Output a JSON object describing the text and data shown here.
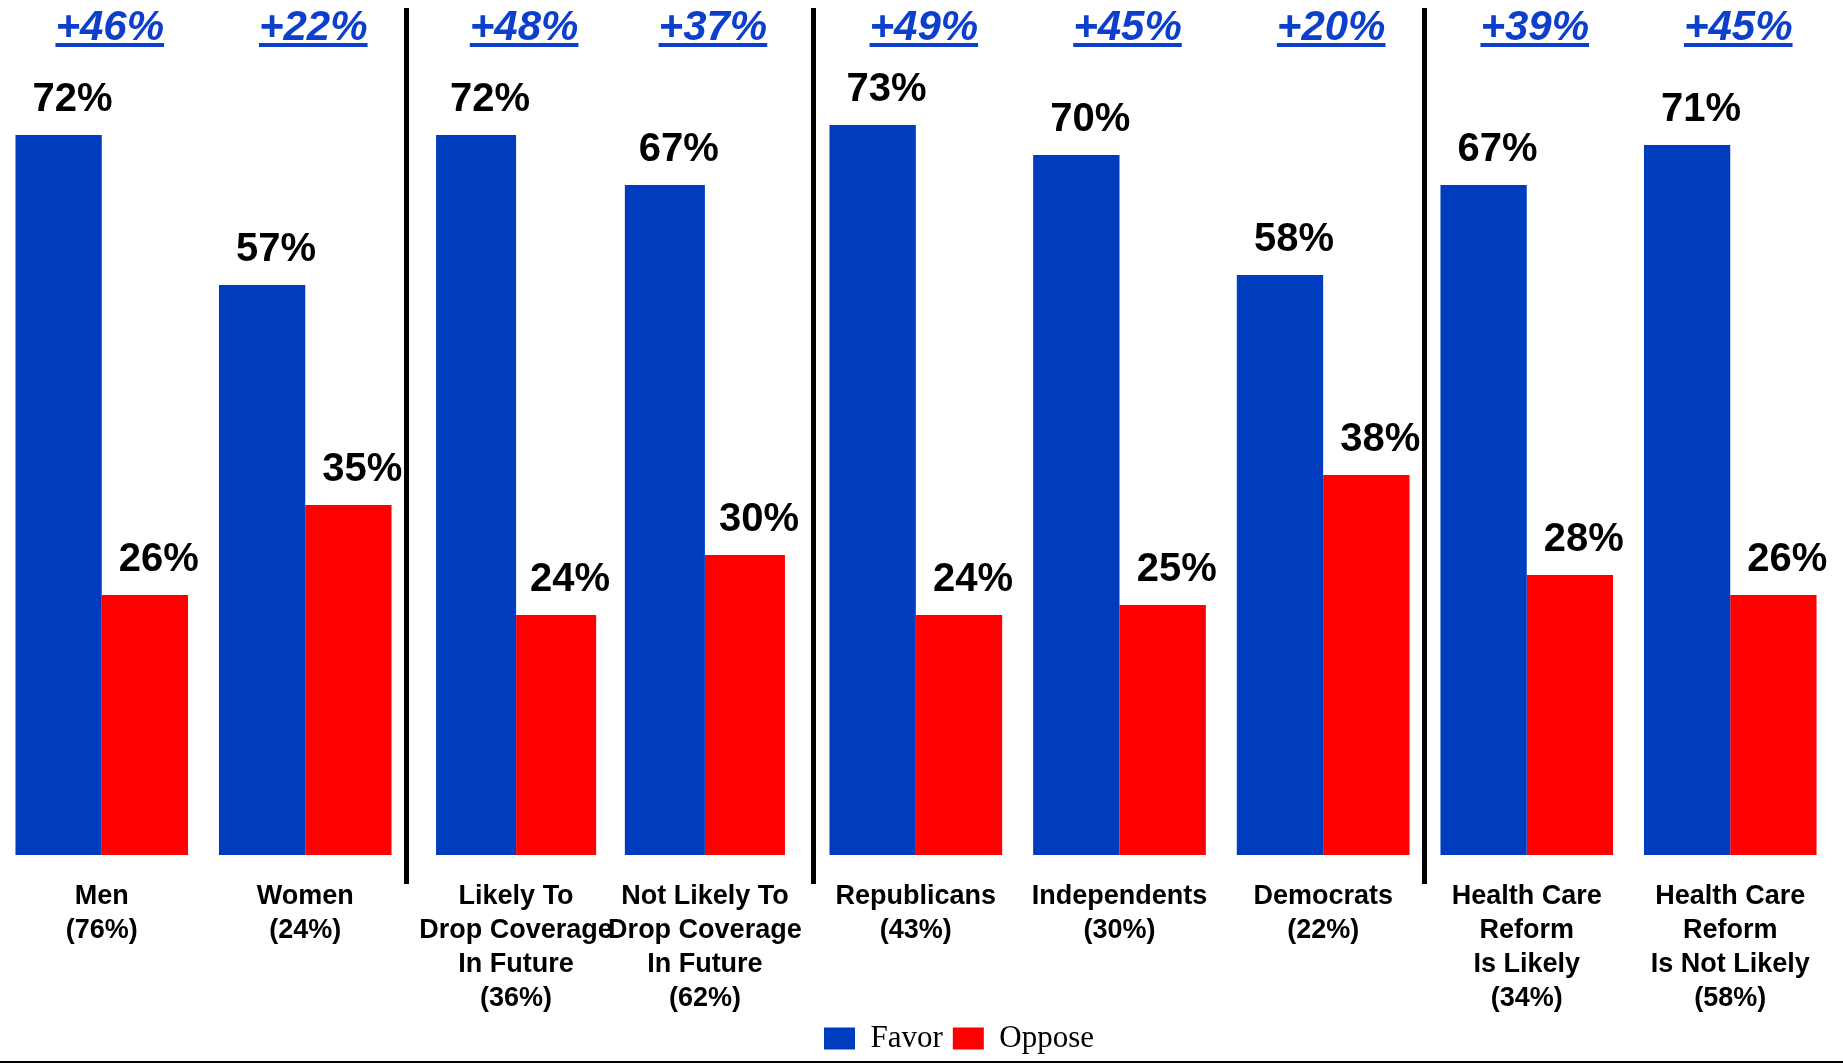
{
  "chart_data": [
    {
      "type": "bar",
      "categories": [
        "Men\n(76%)",
        "Women\n(24%)"
      ],
      "series": [
        {
          "color": "#003cbe",
          "values": [
            72,
            57
          ],
          "value_labels": [
            "72%",
            "57%"
          ]
        },
        {
          "color": "#ff0000",
          "values": [
            26,
            35
          ],
          "value_labels": [
            "26%",
            "35%"
          ]
        }
      ],
      "annotations": [
        "+46%",
        "+22%"
      ],
      "tick_labels": "x"
    },
    {
      "type": "bar",
      "categories": [
        "Likely To\nDrop Coverage\nIn Future\n(36%)",
        "Not Likely To\nDrop Coverage\nIn Future\n(62%)"
      ],
      "series": [
        {
          "color": "#003cbe",
          "values": [
            72,
            67
          ],
          "value_labels": [
            "72%",
            "67%"
          ]
        },
        {
          "color": "#ff0000",
          "values": [
            24,
            30
          ],
          "value_labels": [
            "24%",
            "30%"
          ]
        }
      ],
      "annotations": [
        "+48%",
        "+37%"
      ],
      "tick_labels": "x"
    },
    {
      "type": "bar",
      "categories": [
        "Republicans\n(43%)",
        "Independents\n(30%)",
        "Democrats\n(22%)"
      ],
      "series": [
        {
          "name": "Favor",
          "color": "#003cbe",
          "values": [
            73,
            70,
            58
          ],
          "value_labels": [
            "73%",
            "70%",
            "58%"
          ]
        },
        {
          "name": "Oppose",
          "color": "#ff0000",
          "values": [
            24,
            25,
            38
          ],
          "value_labels": [
            "24%",
            "25%",
            "38%"
          ]
        }
      ],
      "annotations": [
        "+49%",
        "+45%",
        "+20%"
      ],
      "tick_labels": "x",
      "legend": "bottom left"
    },
    {
      "type": "bar",
      "categories": [
        "Health Care\nReform\nIs Likely\n(34%)",
        "Health Care\nReform\nIs Not Likely\n(58%)"
      ],
      "series": [
        {
          "color": "#003cbe",
          "values": [
            67,
            71
          ],
          "value_labels": [
            "67%",
            "71%"
          ]
        },
        {
          "color": "#ff0000",
          "values": [
            28,
            26
          ],
          "value_labels": [
            "28%",
            "26%"
          ]
        }
      ],
      "annotations": [
        "+39%",
        "+45%"
      ],
      "tick_labels": "x"
    }
  ]
}
